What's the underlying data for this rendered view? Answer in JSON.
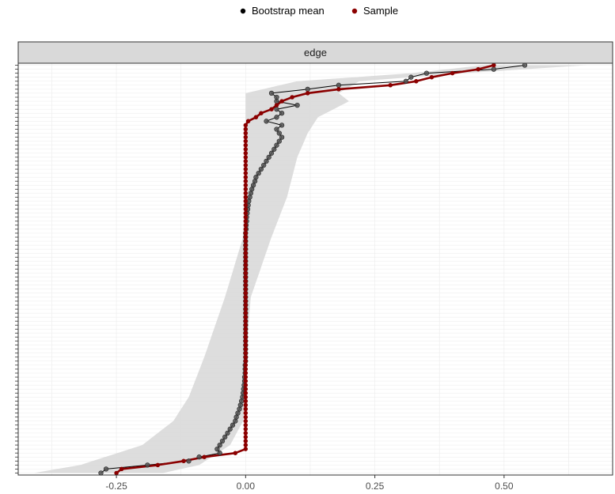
{
  "chart_data": {
    "type": "line",
    "facet": "edge",
    "legend": {
      "position": "top",
      "entries": [
        {
          "label": "Bootstrap mean",
          "color": "#000000"
        },
        {
          "label": "Sample",
          "color": "#8b0000"
        }
      ]
    },
    "x_ticks": [
      {
        "value": -0.25,
        "label": "-0.25"
      },
      {
        "value": 0.0,
        "label": "0.00"
      },
      {
        "value": 0.25,
        "label": "0.25"
      },
      {
        "value": 0.5,
        "label": "0.50"
      }
    ],
    "xlim": [
      -0.44,
      0.71
    ],
    "ylim": [
      0.5,
      103.5
    ],
    "grid": true,
    "n_edges": 103,
    "series": [
      {
        "name": "Sample",
        "color": "#8b0000",
        "x": [
          -0.25,
          -0.24,
          -0.17,
          -0.12,
          -0.08,
          -0.02,
          0.0,
          0.0,
          0.0,
          0.0,
          0.0,
          0.0,
          0.0,
          0.0,
          0.0,
          0.0,
          0.0,
          0.0,
          0.0,
          0.0,
          0.0,
          0.0,
          0.0,
          0.0,
          0.0,
          0.0,
          0.0,
          0.0,
          0.0,
          0.0,
          0.0,
          0.0,
          0.0,
          0.0,
          0.0,
          0.0,
          0.0,
          0.0,
          0.0,
          0.0,
          0.0,
          0.0,
          0.0,
          0.0,
          0.0,
          0.0,
          0.0,
          0.0,
          0.0,
          0.0,
          0.0,
          0.0,
          0.0,
          0.0,
          0.0,
          0.0,
          0.0,
          0.0,
          0.0,
          0.0,
          0.0,
          0.0,
          0.0,
          0.0,
          0.0,
          0.0,
          0.0,
          0.0,
          0.0,
          0.0,
          0.0,
          0.0,
          0.0,
          0.0,
          0.0,
          0.0,
          0.0,
          0.0,
          0.0,
          0.0,
          0.0,
          0.0,
          0.0,
          0.0,
          0.0,
          0.0,
          0.0,
          0.0,
          0.005,
          0.02,
          0.03,
          0.05,
          0.06,
          0.07,
          0.09,
          0.12,
          0.18,
          0.28,
          0.33,
          0.36,
          0.4,
          0.45,
          0.48
        ],
        "y": [
          1,
          2,
          3,
          4,
          5,
          6,
          7,
          8,
          9,
          10,
          11,
          12,
          13,
          14,
          15,
          16,
          17,
          18,
          19,
          20,
          21,
          22,
          23,
          24,
          25,
          26,
          27,
          28,
          29,
          30,
          31,
          32,
          33,
          34,
          35,
          36,
          37,
          38,
          39,
          40,
          41,
          42,
          43,
          44,
          45,
          46,
          47,
          48,
          49,
          50,
          51,
          52,
          53,
          54,
          55,
          56,
          57,
          58,
          59,
          60,
          61,
          62,
          63,
          64,
          65,
          66,
          67,
          68,
          69,
          70,
          71,
          72,
          73,
          74,
          75,
          76,
          77,
          78,
          79,
          80,
          81,
          82,
          83,
          84,
          85,
          86,
          87,
          88,
          89,
          90,
          91,
          92,
          93,
          94,
          95,
          96,
          97,
          98,
          99,
          100,
          101,
          102,
          103
        ]
      },
      {
        "name": "Bootstrap mean",
        "color": "#000000",
        "x": [
          -0.28,
          -0.27,
          -0.19,
          -0.11,
          -0.09,
          -0.05,
          -0.055,
          -0.05,
          -0.045,
          -0.04,
          -0.035,
          -0.03,
          -0.025,
          -0.02,
          -0.018,
          -0.015,
          -0.012,
          -0.01,
          -0.008,
          -0.006,
          -0.005,
          -0.004,
          -0.003,
          -0.002,
          -0.002,
          -0.001,
          -0.001,
          -0.001,
          0.0,
          0.0,
          0.0,
          0.0,
          0.0,
          0.0,
          0.0,
          0.0,
          0.0,
          0.0,
          0.0,
          0.0,
          0.0,
          0.0,
          0.0,
          0.0,
          0.0,
          0.0,
          0.0,
          0.0,
          0.0,
          0.0,
          0.0,
          0.0,
          0.0,
          0.0,
          0.0,
          0.0,
          0.0,
          0.0,
          0.0,
          0.0,
          0.0,
          0.001,
          0.001,
          0.002,
          0.002,
          0.003,
          0.004,
          0.005,
          0.006,
          0.008,
          0.01,
          0.012,
          0.015,
          0.018,
          0.02,
          0.025,
          0.03,
          0.035,
          0.04,
          0.045,
          0.05,
          0.055,
          0.06,
          0.065,
          0.07,
          0.065,
          0.06,
          0.07,
          0.04,
          0.06,
          0.07,
          0.06,
          0.1,
          0.06,
          0.06,
          0.05,
          0.12,
          0.18,
          0.31,
          0.32,
          0.35,
          0.48,
          0.54
        ],
        "y": [
          1,
          2,
          3,
          4,
          5,
          6,
          7,
          8,
          9,
          10,
          11,
          12,
          13,
          14,
          15,
          16,
          17,
          18,
          19,
          20,
          21,
          22,
          23,
          24,
          25,
          26,
          27,
          28,
          29,
          30,
          31,
          32,
          33,
          34,
          35,
          36,
          37,
          38,
          39,
          40,
          41,
          42,
          43,
          44,
          45,
          46,
          47,
          48,
          49,
          50,
          51,
          52,
          53,
          54,
          55,
          56,
          57,
          58,
          59,
          60,
          61,
          62,
          63,
          64,
          65,
          66,
          67,
          68,
          69,
          70,
          71,
          72,
          73,
          74,
          75,
          76,
          77,
          78,
          79,
          80,
          81,
          82,
          83,
          84,
          85,
          86,
          87,
          88,
          89,
          90,
          91,
          92,
          93,
          94,
          95,
          96,
          97,
          98,
          99,
          100,
          101,
          102,
          103
        ]
      }
    ],
    "ribbon": {
      "fill": "#d9d9d9",
      "lower_breaks": {
        "y": [
          1,
          3,
          8,
          14,
          20,
          30,
          45,
          60,
          80,
          86,
          90,
          96,
          99,
          101,
          103
        ],
        "x": [
          -0.41,
          -0.32,
          -0.2,
          -0.14,
          -0.11,
          -0.08,
          -0.04,
          -0.005,
          0.0,
          0.0,
          0.0,
          0.0,
          0.1,
          0.32,
          0.46
        ]
      },
      "upper_breaks": {
        "y": [
          1,
          3,
          8,
          14,
          20,
          30,
          45,
          60,
          70,
          80,
          86,
          90,
          94,
          96,
          99,
          101,
          103
        ],
        "x": [
          -0.16,
          -0.09,
          -0.03,
          -0.005,
          0.0,
          0.0,
          0.01,
          0.05,
          0.08,
          0.1,
          0.12,
          0.14,
          0.2,
          0.18,
          0.22,
          0.42,
          0.66
        ]
      }
    }
  }
}
